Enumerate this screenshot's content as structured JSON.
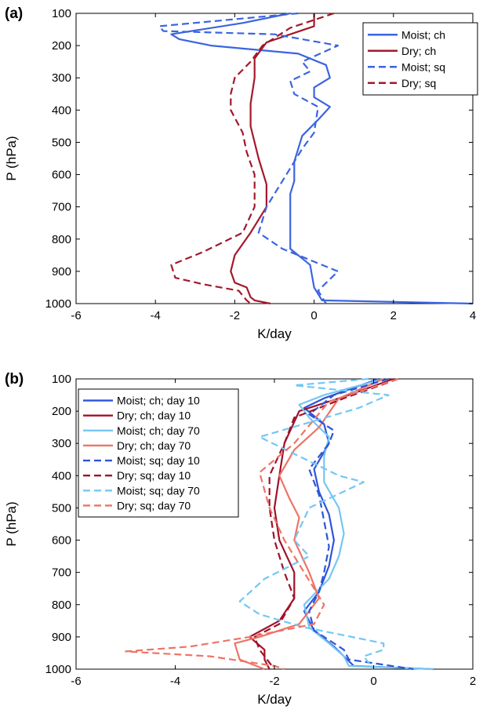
{
  "chart_data": [
    {
      "type": "line",
      "panel_label": "(a)",
      "xlabel": "K/day",
      "ylabel": "P (hPa)",
      "xlim": [
        -6,
        4
      ],
      "ylim": [
        1000,
        100
      ],
      "y_inverted": true,
      "xticks": [
        -6,
        -4,
        -2,
        0,
        2,
        4
      ],
      "yticks": [
        100,
        200,
        300,
        400,
        500,
        600,
        700,
        800,
        900,
        1000
      ],
      "legend_position": "top-right",
      "series": [
        {
          "name": "Moist; ch",
          "color": "#3b64e0",
          "dash": "solid",
          "points": [
            [
              -0.6,
              100
            ],
            [
              -1.8,
              130
            ],
            [
              -3.6,
              165
            ],
            [
              -3.4,
              180
            ],
            [
              -2.6,
              200
            ],
            [
              -0.4,
              225
            ],
            [
              0.3,
              260
            ],
            [
              0.4,
              300
            ],
            [
              0.0,
              330
            ],
            [
              0.0,
              360
            ],
            [
              0.4,
              390
            ],
            [
              0.1,
              430
            ],
            [
              -0.3,
              480
            ],
            [
              -0.5,
              560
            ],
            [
              -0.5,
              620
            ],
            [
              -0.6,
              660
            ],
            [
              -0.6,
              700
            ],
            [
              -0.6,
              770
            ],
            [
              -0.6,
              830
            ],
            [
              -0.1,
              880
            ],
            [
              0.0,
              950
            ],
            [
              0.2,
              990
            ],
            [
              4.0,
              1000
            ]
          ]
        },
        {
          "name": "Dry; ch",
          "color": "#a3192a",
          "dash": "solid",
          "points": [
            [
              0.0,
              100
            ],
            [
              0.0,
              140
            ],
            [
              -1.2,
              190
            ],
            [
              -1.5,
              240
            ],
            [
              -1.5,
              300
            ],
            [
              -1.6,
              380
            ],
            [
              -1.6,
              450
            ],
            [
              -1.4,
              550
            ],
            [
              -1.2,
              630
            ],
            [
              -1.2,
              700
            ],
            [
              -1.6,
              780
            ],
            [
              -2.0,
              850
            ],
            [
              -2.1,
              900
            ],
            [
              -2.0,
              935
            ],
            [
              -1.7,
              950
            ],
            [
              -1.6,
              980
            ],
            [
              -1.5,
              990
            ],
            [
              -1.1,
              1000
            ]
          ]
        },
        {
          "name": "Moist; sq",
          "color": "#3b64e0",
          "dash": "dashed",
          "points": [
            [
              -0.4,
              100
            ],
            [
              -3.9,
              140
            ],
            [
              -3.8,
              155
            ],
            [
              -1.0,
              165
            ],
            [
              0.6,
              200
            ],
            [
              -0.3,
              250
            ],
            [
              -0.1,
              280
            ],
            [
              -0.6,
              310
            ],
            [
              -0.5,
              350
            ],
            [
              0.1,
              390
            ],
            [
              0.0,
              470
            ],
            [
              -0.3,
              520
            ],
            [
              -0.7,
              600
            ],
            [
              -1.2,
              700
            ],
            [
              -1.4,
              780
            ],
            [
              -0.8,
              830
            ],
            [
              0.6,
              900
            ],
            [
              0.1,
              960
            ],
            [
              0.3,
              1000
            ]
          ]
        },
        {
          "name": "Dry; sq",
          "color": "#a3192a",
          "dash": "dashed",
          "points": [
            [
              0.5,
              100
            ],
            [
              -0.6,
              145
            ],
            [
              -1.3,
              200
            ],
            [
              -1.6,
              250
            ],
            [
              -2.0,
              300
            ],
            [
              -2.1,
              350
            ],
            [
              -2.1,
              400
            ],
            [
              -1.8,
              470
            ],
            [
              -1.7,
              530
            ],
            [
              -1.5,
              600
            ],
            [
              -1.5,
              700
            ],
            [
              -1.8,
              780
            ],
            [
              -2.8,
              840
            ],
            [
              -3.6,
              880
            ],
            [
              -3.5,
              920
            ],
            [
              -2.8,
              940
            ],
            [
              -1.9,
              960
            ],
            [
              -1.7,
              990
            ],
            [
              -1.6,
              1000
            ]
          ]
        }
      ]
    },
    {
      "type": "line",
      "panel_label": "(b)",
      "xlabel": "K/day",
      "ylabel": "P (hPa)",
      "xlim": [
        -6,
        2
      ],
      "ylim": [
        1000,
        100
      ],
      "y_inverted": true,
      "xticks": [
        -6,
        -4,
        -2,
        0,
        2
      ],
      "yticks": [
        100,
        200,
        300,
        400,
        500,
        600,
        700,
        800,
        900,
        1000
      ],
      "legend_position": "top-left",
      "series": [
        {
          "name": "Moist; ch; day 10",
          "color": "#2d55d8",
          "dash": "solid",
          "points": [
            [
              0.1,
              100
            ],
            [
              -1.0,
              160
            ],
            [
              -1.4,
              190
            ],
            [
              -1.0,
              240
            ],
            [
              -0.9,
              300
            ],
            [
              -1.2,
              380
            ],
            [
              -1.1,
              450
            ],
            [
              -0.9,
              520
            ],
            [
              -0.8,
              600
            ],
            [
              -0.9,
              680
            ],
            [
              -1.1,
              760
            ],
            [
              -1.4,
              820
            ],
            [
              -1.2,
              880
            ],
            [
              -0.8,
              930
            ],
            [
              -0.6,
              960
            ],
            [
              -0.4,
              990
            ],
            [
              1.2,
              1000
            ]
          ]
        },
        {
          "name": "Dry; ch; day 10",
          "color": "#a01228",
          "dash": "solid",
          "points": [
            [
              0.4,
              100
            ],
            [
              -0.5,
              150
            ],
            [
              -1.5,
              200
            ],
            [
              -1.8,
              300
            ],
            [
              -1.9,
              400
            ],
            [
              -2.0,
              500
            ],
            [
              -1.9,
              600
            ],
            [
              -1.6,
              700
            ],
            [
              -1.6,
              780
            ],
            [
              -1.9,
              850
            ],
            [
              -2.5,
              900
            ],
            [
              -2.2,
              940
            ],
            [
              -2.2,
              970
            ],
            [
              -2.1,
              1000
            ]
          ]
        },
        {
          "name": "Moist; ch; day 70",
          "color": "#74c7f3",
          "dash": "solid",
          "points": [
            [
              0.2,
              100
            ],
            [
              -1.0,
              150
            ],
            [
              -1.5,
              180
            ],
            [
              -1.3,
              220
            ],
            [
              -0.9,
              280
            ],
            [
              -1.0,
              340
            ],
            [
              -1.0,
              420
            ],
            [
              -0.7,
              500
            ],
            [
              -0.6,
              580
            ],
            [
              -0.7,
              650
            ],
            [
              -0.9,
              720
            ],
            [
              -1.4,
              800
            ],
            [
              -1.3,
              870
            ],
            [
              -0.9,
              920
            ],
            [
              -0.6,
              960
            ],
            [
              -0.5,
              990
            ],
            [
              1.2,
              1000
            ]
          ]
        },
        {
          "name": "Dry; ch; day 70",
          "color": "#ee7466",
          "dash": "solid",
          "points": [
            [
              0.2,
              100
            ],
            [
              -0.7,
              160
            ],
            [
              -1.1,
              250
            ],
            [
              -1.6,
              320
            ],
            [
              -1.9,
              400
            ],
            [
              -1.7,
              470
            ],
            [
              -1.5,
              530
            ],
            [
              -1.6,
              600
            ],
            [
              -1.3,
              700
            ],
            [
              -1.1,
              780
            ],
            [
              -1.5,
              860
            ],
            [
              -2.3,
              900
            ],
            [
              -2.8,
              920
            ],
            [
              -2.7,
              970
            ],
            [
              -2.2,
              1000
            ]
          ]
        },
        {
          "name": "Moist; sq; day 10",
          "color": "#2d55d8",
          "dash": "dashed",
          "points": [
            [
              0.3,
              100
            ],
            [
              -0.8,
              150
            ],
            [
              -1.3,
              210
            ],
            [
              -0.8,
              260
            ],
            [
              -0.9,
              300
            ],
            [
              -1.3,
              380
            ],
            [
              -1.1,
              460
            ],
            [
              -1.0,
              540
            ],
            [
              -0.9,
              620
            ],
            [
              -1.0,
              700
            ],
            [
              -1.1,
              760
            ],
            [
              -1.3,
              820
            ],
            [
              -1.2,
              880
            ],
            [
              -0.6,
              940
            ],
            [
              -0.5,
              970
            ],
            [
              0.8,
              1000
            ]
          ]
        },
        {
          "name": "Dry; sq; day 10",
          "color": "#a01228",
          "dash": "dashed",
          "points": [
            [
              0.5,
              100
            ],
            [
              -0.6,
              160
            ],
            [
              -1.6,
              220
            ],
            [
              -1.8,
              300
            ],
            [
              -2.1,
              400
            ],
            [
              -2.1,
              500
            ],
            [
              -2.0,
              600
            ],
            [
              -1.8,
              700
            ],
            [
              -1.6,
              780
            ],
            [
              -1.9,
              860
            ],
            [
              -2.4,
              900
            ],
            [
              -2.3,
              940
            ],
            [
              -2.1,
              980
            ],
            [
              -2.0,
              1000
            ]
          ]
        },
        {
          "name": "Moist; sq; day 70",
          "color": "#74c7f3",
          "dash": "dashed",
          "points": [
            [
              -0.1,
              100
            ],
            [
              -1.6,
              120
            ],
            [
              0.3,
              150
            ],
            [
              -0.3,
              190
            ],
            [
              -2.3,
              280
            ],
            [
              -0.7,
              400
            ],
            [
              -0.2,
              420
            ],
            [
              -1.3,
              500
            ],
            [
              -1.6,
              600
            ],
            [
              -1.3,
              650
            ],
            [
              -2.2,
              720
            ],
            [
              -2.7,
              790
            ],
            [
              -2.3,
              830
            ],
            [
              -1.4,
              870
            ],
            [
              0.2,
              920
            ],
            [
              0.2,
              940
            ],
            [
              -0.2,
              960
            ],
            [
              0.0,
              1000
            ]
          ]
        },
        {
          "name": "Dry; sq; day 70",
          "color": "#ee7466",
          "dash": "dashed",
          "points": [
            [
              0.5,
              100
            ],
            [
              -0.9,
              170
            ],
            [
              -1.6,
              300
            ],
            [
              -2.3,
              390
            ],
            [
              -2.1,
              500
            ],
            [
              -1.8,
              600
            ],
            [
              -1.4,
              700
            ],
            [
              -1.0,
              800
            ],
            [
              -1.2,
              860
            ],
            [
              -2.5,
              900
            ],
            [
              -3.7,
              930
            ],
            [
              -5.0,
              945
            ],
            [
              -3.3,
              960
            ],
            [
              -2.0,
              990
            ],
            [
              -1.8,
              1000
            ]
          ]
        }
      ]
    }
  ]
}
